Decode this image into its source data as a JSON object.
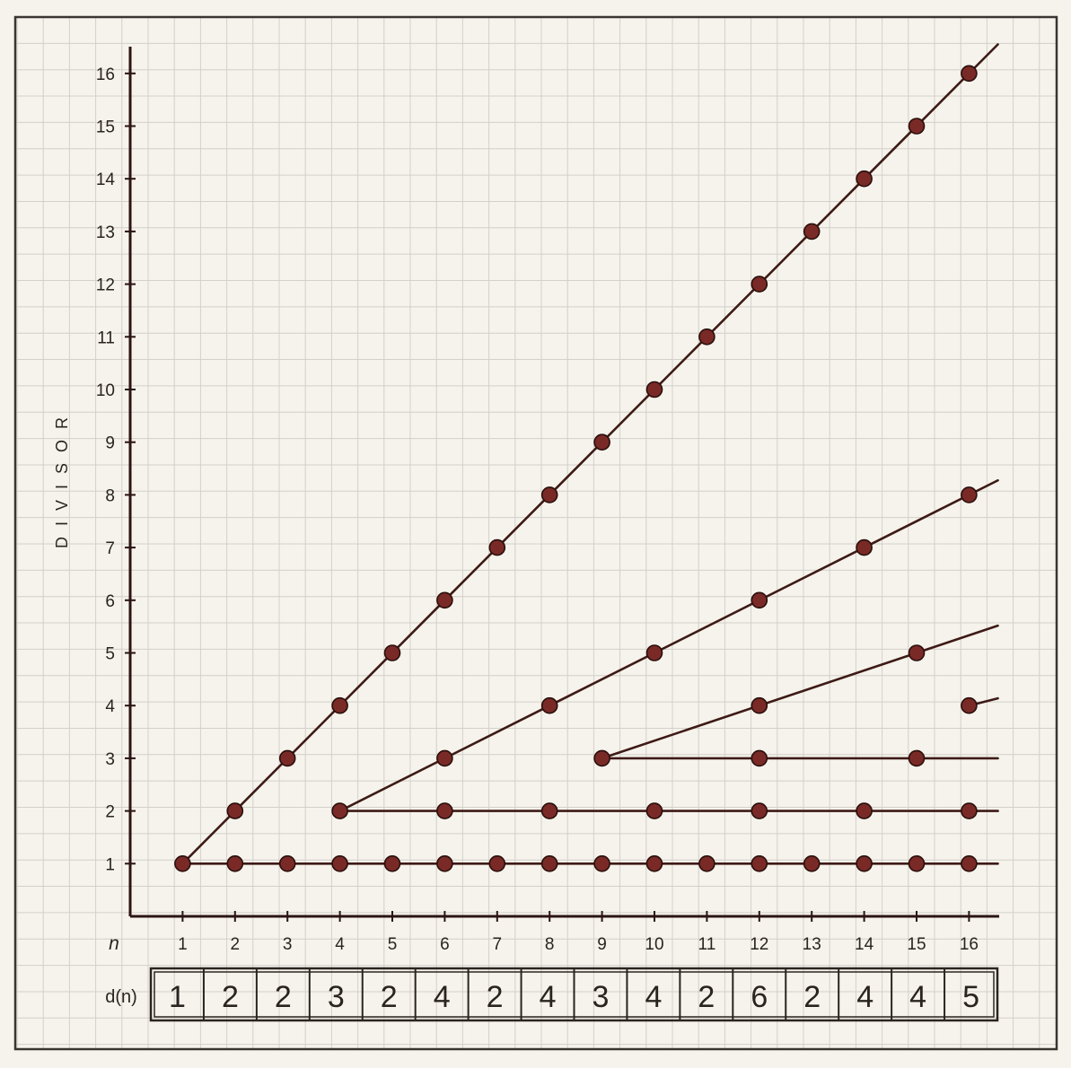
{
  "chart_data": {
    "type": "scatter",
    "title": "",
    "xlabel": "n",
    "ylabel": "DIVISOR",
    "table_label": "d(n)",
    "x_ticks": [
      1,
      2,
      3,
      4,
      5,
      6,
      7,
      8,
      9,
      10,
      11,
      12,
      13,
      14,
      15,
      16
    ],
    "y_ticks": [
      1,
      2,
      3,
      4,
      5,
      6,
      7,
      8,
      9,
      10,
      11,
      12,
      13,
      14,
      15,
      16
    ],
    "x_ticks_text": [
      "1",
      "2",
      "3",
      "4",
      "5",
      "6",
      "7",
      "8",
      "9",
      "10",
      "11",
      "12",
      "13",
      "14",
      "15",
      "16"
    ],
    "y_ticks_text": [
      "1",
      "2",
      "3",
      "4",
      "5",
      "6",
      "7",
      "8",
      "9",
      "10",
      "11",
      "12",
      "13",
      "14",
      "15",
      "16"
    ],
    "d_values": [
      1,
      2,
      2,
      3,
      2,
      4,
      2,
      4,
      3,
      4,
      2,
      6,
      2,
      4,
      4,
      5
    ],
    "d_values_text": [
      "1",
      "2",
      "2",
      "3",
      "2",
      "4",
      "2",
      "4",
      "3",
      "4",
      "2",
      "6",
      "2",
      "4",
      "4",
      "5"
    ],
    "xlim": [
      0,
      16.5
    ],
    "ylim": [
      0,
      16.5
    ],
    "grid": true,
    "points": [
      [
        1,
        1
      ],
      [
        2,
        1
      ],
      [
        2,
        2
      ],
      [
        3,
        1
      ],
      [
        3,
        3
      ],
      [
        4,
        1
      ],
      [
        4,
        2
      ],
      [
        4,
        4
      ],
      [
        5,
        1
      ],
      [
        5,
        5
      ],
      [
        6,
        1
      ],
      [
        6,
        2
      ],
      [
        6,
        3
      ],
      [
        6,
        6
      ],
      [
        7,
        1
      ],
      [
        7,
        7
      ],
      [
        8,
        1
      ],
      [
        8,
        2
      ],
      [
        8,
        4
      ],
      [
        8,
        8
      ],
      [
        9,
        1
      ],
      [
        9,
        3
      ],
      [
        9,
        9
      ],
      [
        10,
        1
      ],
      [
        10,
        2
      ],
      [
        10,
        5
      ],
      [
        10,
        10
      ],
      [
        11,
        1
      ],
      [
        11,
        11
      ],
      [
        12,
        1
      ],
      [
        12,
        2
      ],
      [
        12,
        3
      ],
      [
        12,
        4
      ],
      [
        12,
        6
      ],
      [
        12,
        12
      ],
      [
        13,
        1
      ],
      [
        13,
        13
      ],
      [
        14,
        1
      ],
      [
        14,
        2
      ],
      [
        14,
        7
      ],
      [
        14,
        14
      ],
      [
        15,
        1
      ],
      [
        15,
        3
      ],
      [
        15,
        5
      ],
      [
        15,
        15
      ],
      [
        16,
        1
      ],
      [
        16,
        2
      ],
      [
        16,
        4
      ],
      [
        16,
        8
      ],
      [
        16,
        16
      ]
    ],
    "rays": [
      {
        "x": [
          1,
          16.55
        ],
        "y": [
          1,
          16.55
        ]
      },
      {
        "x": [
          4,
          16.55
        ],
        "y": [
          2,
          8.275
        ]
      },
      {
        "x": [
          9,
          16.55
        ],
        "y": [
          3,
          5.517
        ]
      },
      {
        "x": [
          16,
          16.55
        ],
        "y": [
          4,
          4.1375
        ]
      },
      {
        "x": [
          9,
          16.55
        ],
        "y": [
          3,
          3
        ]
      },
      {
        "x": [
          4,
          16.55
        ],
        "y": [
          2,
          2
        ]
      },
      {
        "x": [
          1,
          16.55
        ],
        "y": [
          1,
          1
        ]
      }
    ],
    "colors": {
      "point": "#7a2a26",
      "line": "#3e1a16",
      "grid": "#d2d0c8",
      "axis": "#2b1412"
    }
  }
}
